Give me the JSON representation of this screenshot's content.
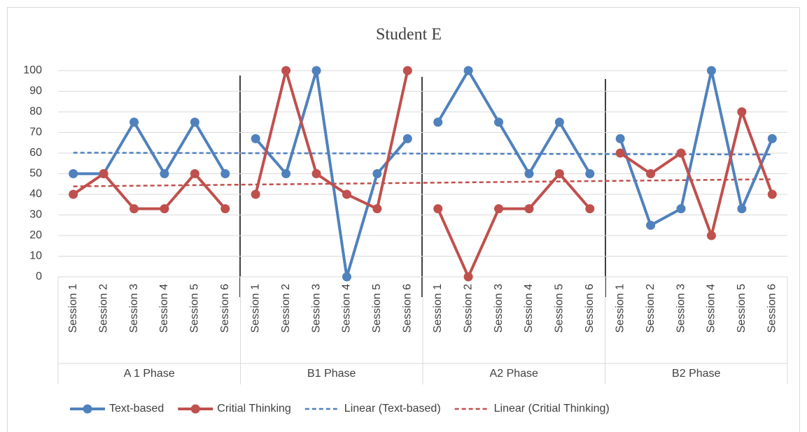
{
  "chart_data": {
    "type": "line",
    "title": "Student E",
    "groups": [
      {
        "name": "A 1 Phase",
        "categories": [
          "Session 1",
          "Session 2",
          "Session 3",
          "Session 4",
          "Session 5",
          "Session 6"
        ]
      },
      {
        "name": "B1 Phase",
        "categories": [
          "Session 1",
          "Session 2",
          "Session 3",
          "Session 4",
          "Session 5",
          "Session 6"
        ]
      },
      {
        "name": "A2 Phase",
        "categories": [
          "Session 1",
          "Session 2",
          "Session 3",
          "Session 4",
          "Session 5",
          "Session 6"
        ]
      },
      {
        "name": "B2 Phase",
        "categories": [
          "Session 1",
          "Session 2",
          "Session 3",
          "Session 4",
          "Session 5",
          "Session 6"
        ]
      }
    ],
    "series": [
      {
        "name": "Text-based",
        "color": "#4f81bd",
        "values": [
          50,
          50,
          75,
          50,
          75,
          50,
          67,
          50,
          100,
          0,
          50,
          67,
          75,
          100,
          75,
          50,
          75,
          50,
          67,
          25,
          33,
          100,
          33,
          67
        ],
        "trendline": {
          "name": "Linear (Text-based)",
          "type": "linear",
          "dashed": true
        }
      },
      {
        "name": "Critial Thinking",
        "color": "#c0504d",
        "values": [
          40,
          50,
          33,
          33,
          50,
          33,
          40,
          100,
          50,
          40,
          33,
          100,
          33,
          0,
          33,
          33,
          50,
          33,
          60,
          50,
          60,
          20,
          80,
          40
        ],
        "trendline": {
          "name": "Linear (Critial Thinking)",
          "type": "linear",
          "dashed": true
        }
      }
    ],
    "ylim": [
      0,
      100
    ],
    "yticks": [
      0,
      10,
      20,
      30,
      40,
      50,
      60,
      70,
      80,
      90,
      100
    ],
    "grid": true,
    "legend": "bottom"
  }
}
